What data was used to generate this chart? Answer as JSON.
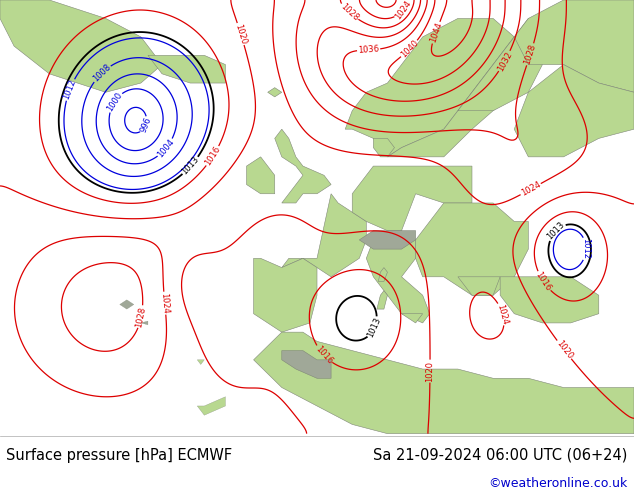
{
  "title_left": "Surface pressure [hPa] ECMWF",
  "title_right": "Sa 21-09-2024 06:00 UTC (06+24)",
  "credit": "©weatheronline.co.uk",
  "bg_ocean": "#d4d8dc",
  "bg_land": "#b8d890",
  "bg_mountain": "#a0a898",
  "contour_low_color": "#0000dd",
  "contour_high_color": "#dd0000",
  "contour_thresh_color": "#000000",
  "figsize": [
    6.34,
    4.9
  ],
  "dpi": 100,
  "bottom_bar_color": "#ffffff",
  "bottom_bar_height": 0.115,
  "title_fontsize": 10.5,
  "credit_fontsize": 9,
  "credit_color": "#0000cc",
  "lon_min": -45,
  "lon_max": 45,
  "lat_min": 25,
  "lat_max": 72
}
